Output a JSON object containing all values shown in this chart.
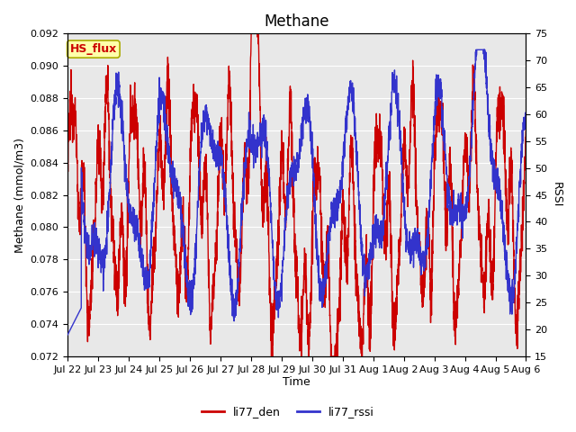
{
  "title": "Methane",
  "ylabel_left": "Methane (mmol/m3)",
  "ylabel_right": "RSSI",
  "xlabel": "Time",
  "ylim_left": [
    0.072,
    0.092
  ],
  "ylim_right": [
    15,
    75
  ],
  "yticks_left": [
    0.072,
    0.074,
    0.076,
    0.078,
    0.08,
    0.082,
    0.084,
    0.086,
    0.088,
    0.09,
    0.092
  ],
  "yticks_right": [
    15,
    20,
    25,
    30,
    35,
    40,
    45,
    50,
    55,
    60,
    65,
    70,
    75
  ],
  "color_red": "#cc0000",
  "color_blue": "#3333cc",
  "legend_labels": [
    "li77_den",
    "li77_rssi"
  ],
  "annotation_text": "HS_flux",
  "annotation_color": "#cc0000",
  "annotation_bg": "#ffffaa",
  "annotation_border": "#aaaa00",
  "plot_bg_color": "#e8e8e8",
  "fig_bg_color": "#ffffff",
  "xtick_labels": [
    "Jul 22",
    "Jul 23",
    "Jul 24",
    "Jul 25",
    "Jul 26",
    "Jul 27",
    "Jul 28",
    "Jul 29",
    "Jul 30",
    "Jul 31",
    "Aug 1",
    "Aug 2",
    "Aug 3",
    "Aug 4",
    "Aug 5",
    "Aug 6"
  ],
  "linewidth": 1.0,
  "title_fontsize": 12,
  "axis_fontsize": 9,
  "tick_fontsize": 8,
  "legend_fontsize": 9
}
